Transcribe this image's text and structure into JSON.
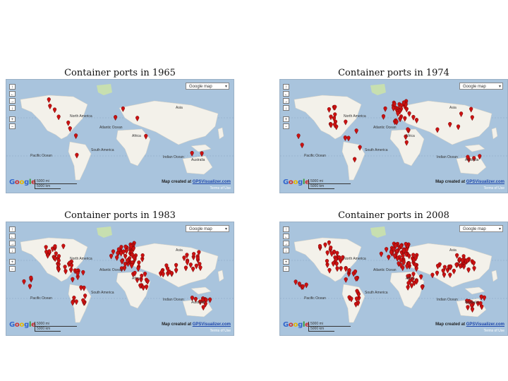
{
  "panels": [
    {
      "title": "Container ports in 1965",
      "density": 0
    },
    {
      "title": "Container ports in 1974",
      "density": 1
    },
    {
      "title": "Container ports in 1983",
      "density": 2
    },
    {
      "title": "Container ports in 2008",
      "density": 3
    }
  ],
  "map_type": "Google map",
  "nav_buttons": [
    "↑",
    "←",
    "→",
    "↓",
    "+",
    "−"
  ],
  "scale": {
    "mi": "5000 mi",
    "km": "5000 km"
  },
  "credit_prefix": "Map created at",
  "credit_link": "GPSVisualizer.com",
  "terms": "Terms of Use",
  "labels": {
    "north_america": "North America",
    "atlantic": "Atlantic Ocean",
    "asia": "Asia",
    "africa": "Africa",
    "south_america": "South America",
    "pacific": "Pacific Ocean",
    "indian": "Indian Ocean",
    "australia": "Australia"
  },
  "colors": {
    "marker": "#cc1111",
    "water": "#a9c4dd",
    "land": "#f3f1ea",
    "greenland": "#c7dfb0"
  },
  "icons": {
    "marker": "map-pin-icon"
  }
}
